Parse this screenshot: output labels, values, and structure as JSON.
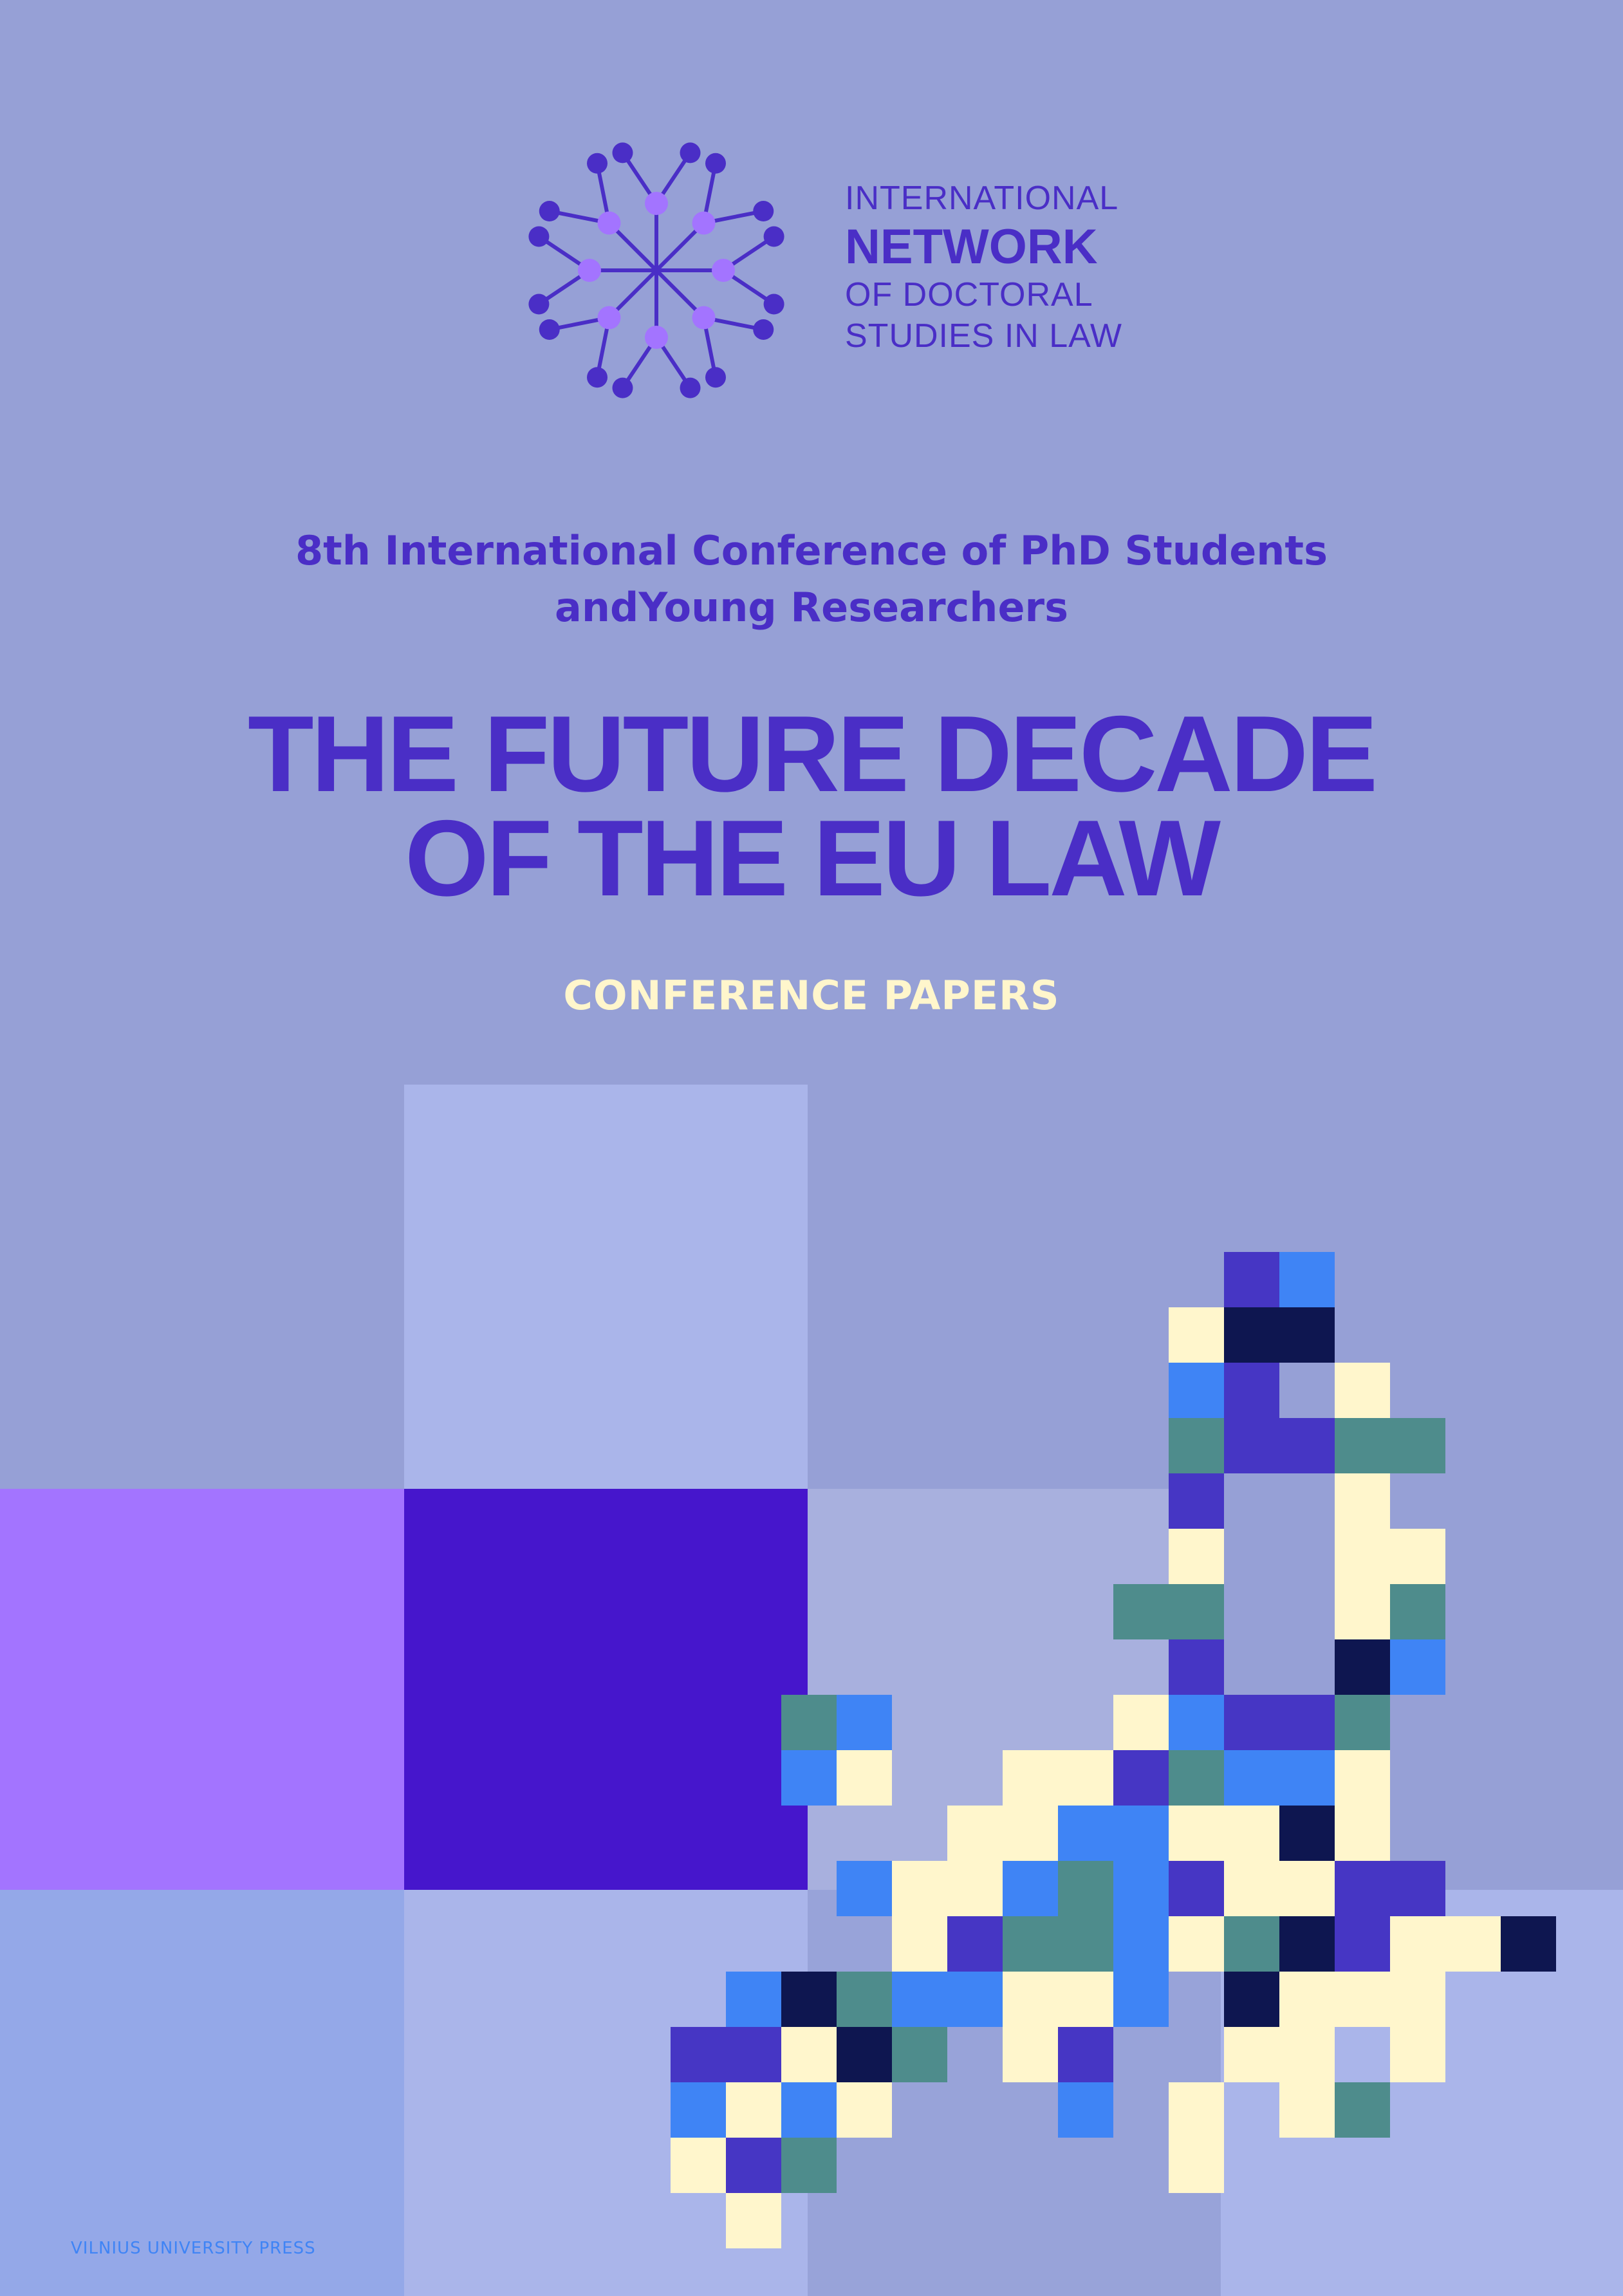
{
  "logo": {
    "name": "network-logo",
    "lines": [
      "INTERNATIONAL",
      "NETWORK",
      "OF DOCTORAL",
      "STUDIES IN LAW"
    ]
  },
  "subtitle": {
    "line1": "8th International Conference of PhD Students",
    "line2": "andYoung Researchers"
  },
  "title": {
    "line1": "THE FUTURE DECADE",
    "line2": "OF THE EU LAW"
  },
  "label": "CONFERENCE PAPERS",
  "publisher": "VILNIUS UNIVERSITY PRESS",
  "colors": {
    "background": "#96A0D6",
    "accent": "#4A2EC6",
    "cream": "#FFF6CC",
    "blue": "#3F84F5",
    "teal": "#4E8C8C",
    "purple": "#4636C4",
    "navy": "#0E1650",
    "violet": "#A374FF",
    "indigo": "#4616CC"
  }
}
